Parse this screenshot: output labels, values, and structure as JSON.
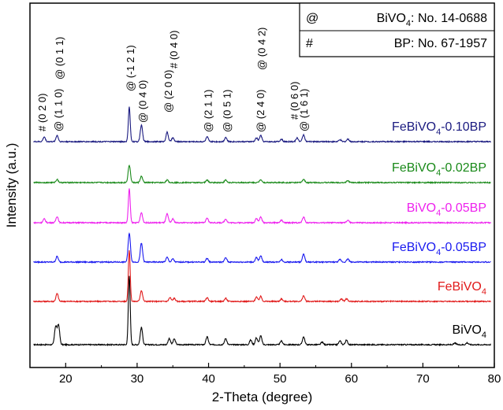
{
  "chart_data": {
    "type": "line",
    "xlabel": "2-Theta (degree)",
    "ylabel": "Intensity (a.u.)",
    "xlim": [
      15,
      80
    ],
    "xticks": [
      20,
      30,
      40,
      50,
      60,
      70,
      80
    ],
    "y_ticks_shown": false,
    "grid": false,
    "reference": {
      "rows": [
        {
          "symbol": "@",
          "name": "BiVO",
          "sub": "4",
          "tail": ":  No. 14-0688"
        },
        {
          "symbol": "#",
          "name": "BP",
          "sub": "",
          "tail": ":  No. 67-1957"
        }
      ]
    },
    "peak_labels": [
      {
        "x": 17.0,
        "text": "# (0 2 0)"
      },
      {
        "x": 18.8,
        "text": "@ (1 1 0)"
      },
      {
        "x": 19.0,
        "text": "@ (0 1 1)"
      },
      {
        "x": 28.9,
        "text": "@ (-1 2 1)"
      },
      {
        "x": 30.6,
        "text": "@ (0 4 0)"
      },
      {
        "x": 34.2,
        "text": "@ (2 0 0)"
      },
      {
        "x": 35.0,
        "text": "# (0 4 0)"
      },
      {
        "x": 39.8,
        "text": "@ (2 1 1)"
      },
      {
        "x": 42.4,
        "text": "@ (0 5 1)"
      },
      {
        "x": 47.1,
        "text": "@ (2 4 0)"
      },
      {
        "x": 47.3,
        "text": "@ (0 4 2)"
      },
      {
        "x": 52.4,
        "text": "# (0 6 0)"
      },
      {
        "x": 53.2,
        "text": "@ (1 6 1)"
      }
    ],
    "series": [
      {
        "name": "BiVO",
        "sub": "4",
        "suffix": "",
        "color": "#000000",
        "offset": 0,
        "scale": 1.0,
        "peaks": [
          [
            18.6,
            0.58
          ],
          [
            19.0,
            0.62
          ],
          [
            28.9,
            2.2
          ],
          [
            30.6,
            0.55
          ],
          [
            34.5,
            0.2
          ],
          [
            35.2,
            0.18
          ],
          [
            39.8,
            0.25
          ],
          [
            42.4,
            0.2
          ],
          [
            45.9,
            0.15
          ],
          [
            46.7,
            0.22
          ],
          [
            47.3,
            0.28
          ],
          [
            50.2,
            0.12
          ],
          [
            53.3,
            0.25
          ],
          [
            55.9,
            0.08
          ],
          [
            58.4,
            0.12
          ],
          [
            59.3,
            0.14
          ],
          [
            74.5,
            0.05
          ],
          [
            76.2,
            0.06
          ]
        ]
      },
      {
        "name": "FeBiVO",
        "sub": "4",
        "suffix": "",
        "color": "#e11a1a",
        "offset": 1,
        "scale": 1.0,
        "peaks": [
          [
            18.8,
            0.25
          ],
          [
            28.9,
            1.62
          ],
          [
            30.6,
            0.35
          ],
          [
            34.6,
            0.12
          ],
          [
            35.2,
            0.1
          ],
          [
            39.8,
            0.12
          ],
          [
            42.4,
            0.1
          ],
          [
            46.7,
            0.14
          ],
          [
            47.3,
            0.16
          ],
          [
            50.2,
            0.08
          ],
          [
            53.3,
            0.18
          ],
          [
            58.6,
            0.08
          ],
          [
            59.3,
            0.08
          ]
        ]
      },
      {
        "name": "FeBiVO",
        "sub": "4",
        "suffix": "-0.05BP",
        "color": "#1a1af0",
        "offset": 2,
        "scale": 1.0,
        "peaks": [
          [
            18.8,
            0.18
          ],
          [
            28.9,
            0.92
          ],
          [
            30.6,
            0.6
          ],
          [
            34.2,
            0.15
          ],
          [
            35.0,
            0.1
          ],
          [
            39.8,
            0.12
          ],
          [
            42.4,
            0.14
          ],
          [
            46.7,
            0.14
          ],
          [
            47.3,
            0.2
          ],
          [
            50.2,
            0.08
          ],
          [
            53.3,
            0.25
          ],
          [
            58.4,
            0.08
          ],
          [
            59.5,
            0.1
          ]
        ]
      },
      {
        "name": "BiVO",
        "sub": "4",
        "suffix": "-0.05BP",
        "color": "#ee22ee",
        "offset": 3,
        "scale": 1.0,
        "peaks": [
          [
            17.0,
            0.12
          ],
          [
            18.8,
            0.2
          ],
          [
            28.9,
            1.08
          ],
          [
            30.6,
            0.32
          ],
          [
            34.2,
            0.28
          ],
          [
            35.0,
            0.12
          ],
          [
            39.8,
            0.14
          ],
          [
            42.4,
            0.12
          ],
          [
            46.7,
            0.14
          ],
          [
            47.3,
            0.18
          ],
          [
            50.2,
            0.08
          ],
          [
            53.3,
            0.18
          ],
          [
            59.5,
            0.08
          ]
        ]
      },
      {
        "name": "FeBiVO",
        "sub": "4",
        "suffix": "-0.02BP",
        "color": "#1a8a1a",
        "offset": 4,
        "scale": 1.0,
        "peaks": [
          [
            18.8,
            0.1
          ],
          [
            28.9,
            0.55
          ],
          [
            30.6,
            0.2
          ],
          [
            34.2,
            0.08
          ],
          [
            39.8,
            0.08
          ],
          [
            42.4,
            0.08
          ],
          [
            47.3,
            0.1
          ],
          [
            53.3,
            0.1
          ],
          [
            59.5,
            0.06
          ]
        ]
      },
      {
        "name": "FeBiVO",
        "sub": "4",
        "suffix": "-0.10BP",
        "color": "#1a1a80",
        "offset": 5,
        "scale": 1.0,
        "peaks": [
          [
            17.0,
            0.15
          ],
          [
            18.8,
            0.2
          ],
          [
            28.9,
            1.1
          ],
          [
            30.6,
            0.52
          ],
          [
            34.2,
            0.3
          ],
          [
            35.0,
            0.12
          ],
          [
            39.8,
            0.15
          ],
          [
            42.4,
            0.14
          ],
          [
            46.7,
            0.12
          ],
          [
            47.3,
            0.2
          ],
          [
            50.2,
            0.08
          ],
          [
            52.4,
            0.12
          ],
          [
            53.3,
            0.22
          ],
          [
            58.4,
            0.06
          ],
          [
            59.5,
            0.08
          ]
        ]
      }
    ]
  }
}
